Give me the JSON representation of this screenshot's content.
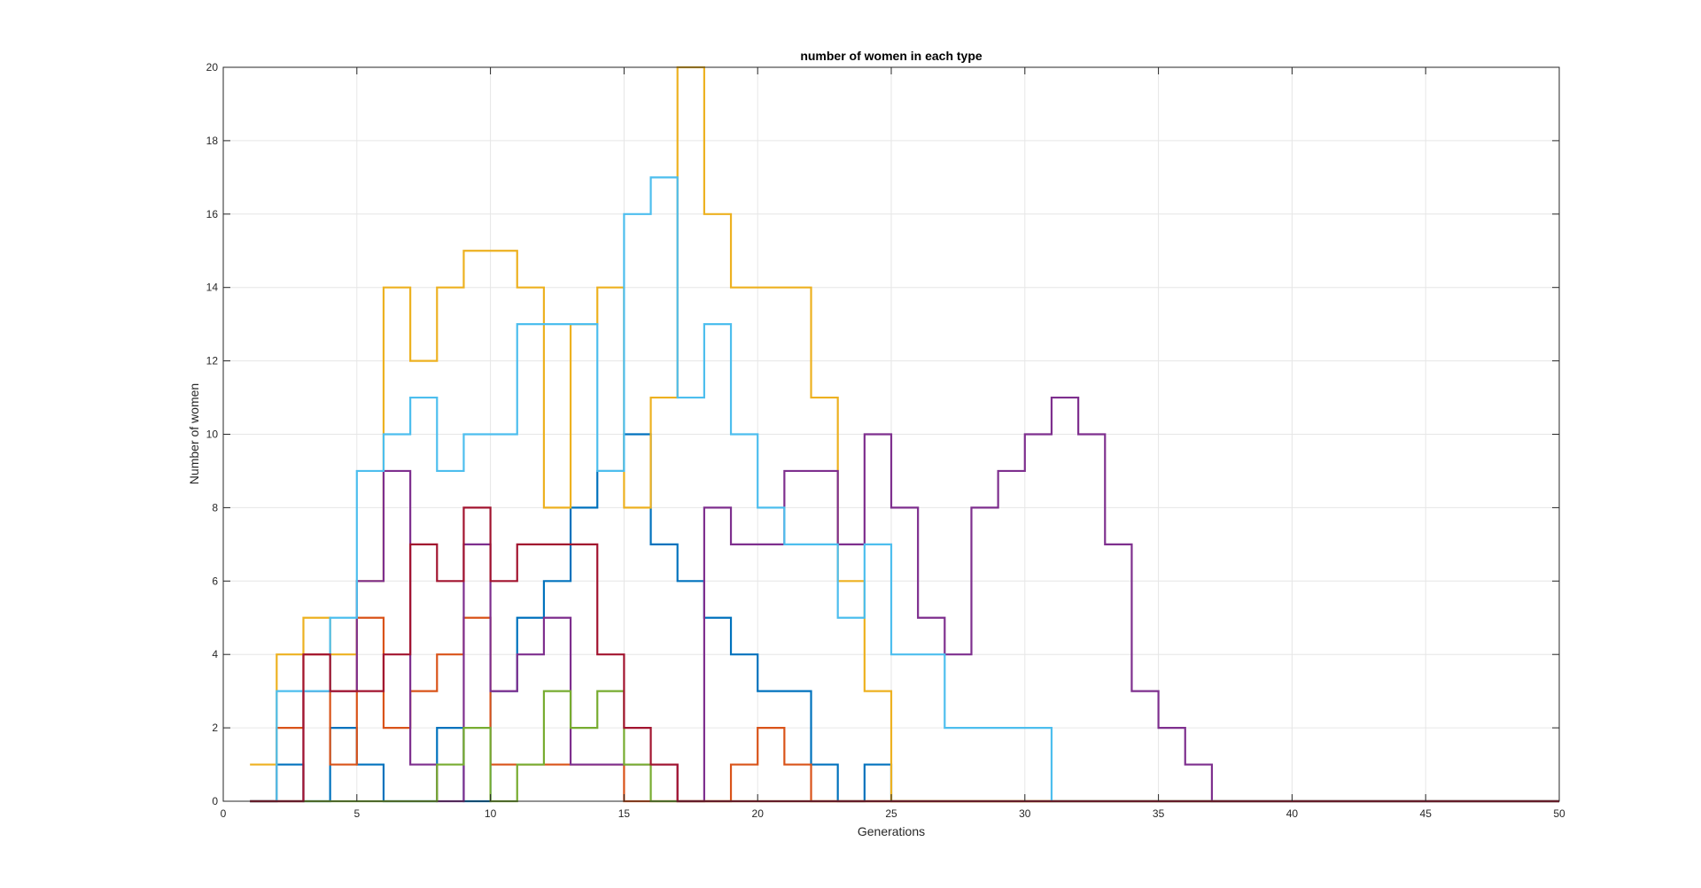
{
  "chart_data": {
    "type": "line",
    "title": "number of women in each type",
    "xlabel": "Generations",
    "ylabel": "Number of women",
    "xlim": [
      0,
      50
    ],
    "ylim": [
      0,
      20
    ],
    "xticks": [
      0,
      5,
      10,
      15,
      20,
      25,
      30,
      35,
      40,
      45,
      50
    ],
    "yticks": [
      0,
      2,
      4,
      6,
      8,
      10,
      12,
      14,
      16,
      18,
      20
    ],
    "grid": true,
    "step": true,
    "legend": "none",
    "series": [
      {
        "color": "#0072BD",
        "x": [
          1,
          2,
          3,
          4,
          5,
          6,
          7,
          8,
          9,
          10,
          11,
          12,
          13,
          14,
          15,
          16,
          17,
          18,
          19,
          20,
          21,
          22,
          23,
          24,
          25,
          26,
          27,
          28,
          29,
          30,
          31,
          32,
          33,
          34,
          35,
          36,
          37,
          38,
          39,
          40,
          41,
          42,
          43,
          44,
          45,
          46,
          47,
          48,
          49,
          50
        ],
        "values": [
          0,
          1,
          0,
          2,
          1,
          0,
          0,
          2,
          0,
          3,
          5,
          6,
          8,
          9,
          10,
          7,
          6,
          5,
          4,
          3,
          3,
          1,
          0,
          1,
          0,
          0,
          0,
          0,
          0,
          0,
          0,
          0,
          0,
          0,
          0,
          0,
          0,
          0,
          0,
          0,
          0,
          0,
          0,
          0,
          0,
          0,
          0,
          0,
          0,
          0
        ]
      },
      {
        "color": "#D95319",
        "x": [
          1,
          2,
          3,
          4,
          5,
          6,
          7,
          8,
          9,
          10,
          11,
          12,
          13,
          14,
          15,
          16,
          17,
          18,
          19,
          20,
          21,
          22,
          23,
          24,
          25,
          26,
          27,
          28,
          29,
          30,
          31,
          32,
          33,
          34,
          35,
          36,
          37,
          38,
          39,
          40,
          41,
          42,
          43,
          44,
          45,
          46,
          47,
          48,
          49,
          50
        ],
        "values": [
          0,
          2,
          4,
          1,
          5,
          2,
          3,
          4,
          5,
          1,
          1,
          1,
          1,
          1,
          0,
          0,
          0,
          0,
          1,
          2,
          1,
          0,
          0,
          0,
          0,
          0,
          0,
          0,
          0,
          0,
          0,
          0,
          0,
          0,
          0,
          0,
          0,
          0,
          0,
          0,
          0,
          0,
          0,
          0,
          0,
          0,
          0,
          0,
          0,
          0
        ]
      },
      {
        "color": "#EDB120",
        "x": [
          1,
          2,
          3,
          4,
          5,
          6,
          7,
          8,
          9,
          10,
          11,
          12,
          13,
          14,
          15,
          16,
          17,
          18,
          19,
          20,
          21,
          22,
          23,
          24,
          25,
          26,
          27,
          28,
          29,
          30,
          31,
          32,
          33,
          34,
          35,
          36,
          37,
          38,
          39,
          40,
          41,
          42,
          43,
          44,
          45,
          46,
          47,
          48,
          49,
          50
        ],
        "values": [
          1,
          4,
          5,
          4,
          6,
          14,
          12,
          14,
          15,
          15,
          14,
          8,
          13,
          14,
          8,
          11,
          20,
          16,
          14,
          14,
          14,
          11,
          6,
          3,
          0,
          0,
          0,
          0,
          0,
          0,
          0,
          0,
          0,
          0,
          0,
          0,
          0,
          0,
          0,
          0,
          0,
          0,
          0,
          0,
          0,
          0,
          0,
          0,
          0,
          0
        ]
      },
      {
        "color": "#7E2F8E",
        "x": [
          1,
          2,
          3,
          4,
          5,
          6,
          7,
          8,
          9,
          10,
          11,
          12,
          13,
          14,
          15,
          16,
          17,
          18,
          19,
          20,
          21,
          22,
          23,
          24,
          25,
          26,
          27,
          28,
          29,
          30,
          31,
          32,
          33,
          34,
          35,
          36,
          37,
          38,
          39,
          40,
          41,
          42,
          43,
          44,
          45,
          46,
          47,
          48,
          49,
          50
        ],
        "values": [
          0,
          0,
          3,
          3,
          6,
          9,
          1,
          0,
          7,
          3,
          4,
          5,
          1,
          1,
          1,
          1,
          0,
          8,
          7,
          7,
          9,
          9,
          7,
          10,
          8,
          5,
          4,
          8,
          9,
          10,
          11,
          10,
          7,
          3,
          2,
          1,
          0,
          0,
          0,
          0,
          0,
          0,
          0,
          0,
          0,
          0,
          0,
          0,
          0,
          0
        ]
      },
      {
        "color": "#77AC30",
        "x": [
          1,
          2,
          3,
          4,
          5,
          6,
          7,
          8,
          9,
          10,
          11,
          12,
          13,
          14,
          15,
          16,
          17,
          18,
          19,
          20,
          21,
          22,
          23,
          24,
          25,
          26,
          27,
          28,
          29,
          30,
          31,
          32,
          33,
          34,
          35,
          36,
          37,
          38,
          39,
          40,
          41,
          42,
          43,
          44,
          45,
          46,
          47,
          48,
          49,
          50
        ],
        "values": [
          0,
          0,
          0,
          0,
          0,
          0,
          0,
          1,
          2,
          0,
          1,
          3,
          2,
          3,
          1,
          0,
          0,
          0,
          0,
          0,
          0,
          0,
          0,
          0,
          0,
          0,
          0,
          0,
          0,
          0,
          0,
          0,
          0,
          0,
          0,
          0,
          0,
          0,
          0,
          0,
          0,
          0,
          0,
          0,
          0,
          0,
          0,
          0,
          0,
          0
        ]
      },
      {
        "color": "#4DBEEE",
        "x": [
          1,
          2,
          3,
          4,
          5,
          6,
          7,
          8,
          9,
          10,
          11,
          12,
          13,
          14,
          15,
          16,
          17,
          18,
          19,
          20,
          21,
          22,
          23,
          24,
          25,
          26,
          27,
          28,
          29,
          30,
          31,
          32,
          33,
          34,
          35,
          36,
          37,
          38,
          39,
          40,
          41,
          42,
          43,
          44,
          45,
          46,
          47,
          48,
          49,
          50
        ],
        "values": [
          0,
          3,
          3,
          5,
          9,
          10,
          11,
          9,
          10,
          10,
          13,
          13,
          13,
          9,
          16,
          17,
          11,
          13,
          10,
          8,
          7,
          7,
          5,
          7,
          4,
          4,
          2,
          2,
          2,
          2,
          0,
          0,
          0,
          0,
          0,
          0,
          0,
          0,
          0,
          0,
          0,
          0,
          0,
          0,
          0,
          0,
          0,
          0,
          0,
          0
        ]
      },
      {
        "color": "#A2142F",
        "x": [
          1,
          2,
          3,
          4,
          5,
          6,
          7,
          8,
          9,
          10,
          11,
          12,
          13,
          14,
          15,
          16,
          17,
          18,
          19,
          20,
          21,
          22,
          23,
          24,
          25,
          26,
          27,
          28,
          29,
          30,
          31,
          32,
          33,
          34,
          35,
          36,
          37,
          38,
          39,
          40,
          41,
          42,
          43,
          44,
          45,
          46,
          47,
          48,
          49,
          50
        ],
        "values": [
          0,
          0,
          4,
          3,
          3,
          4,
          7,
          6,
          8,
          6,
          7,
          7,
          7,
          4,
          2,
          1,
          0,
          0,
          0,
          0,
          0,
          0,
          0,
          0,
          0,
          0,
          0,
          0,
          0,
          0,
          0,
          0,
          0,
          0,
          0,
          0,
          0,
          0,
          0,
          0,
          0,
          0,
          0,
          0,
          0,
          0,
          0,
          0,
          0,
          0
        ]
      }
    ]
  }
}
